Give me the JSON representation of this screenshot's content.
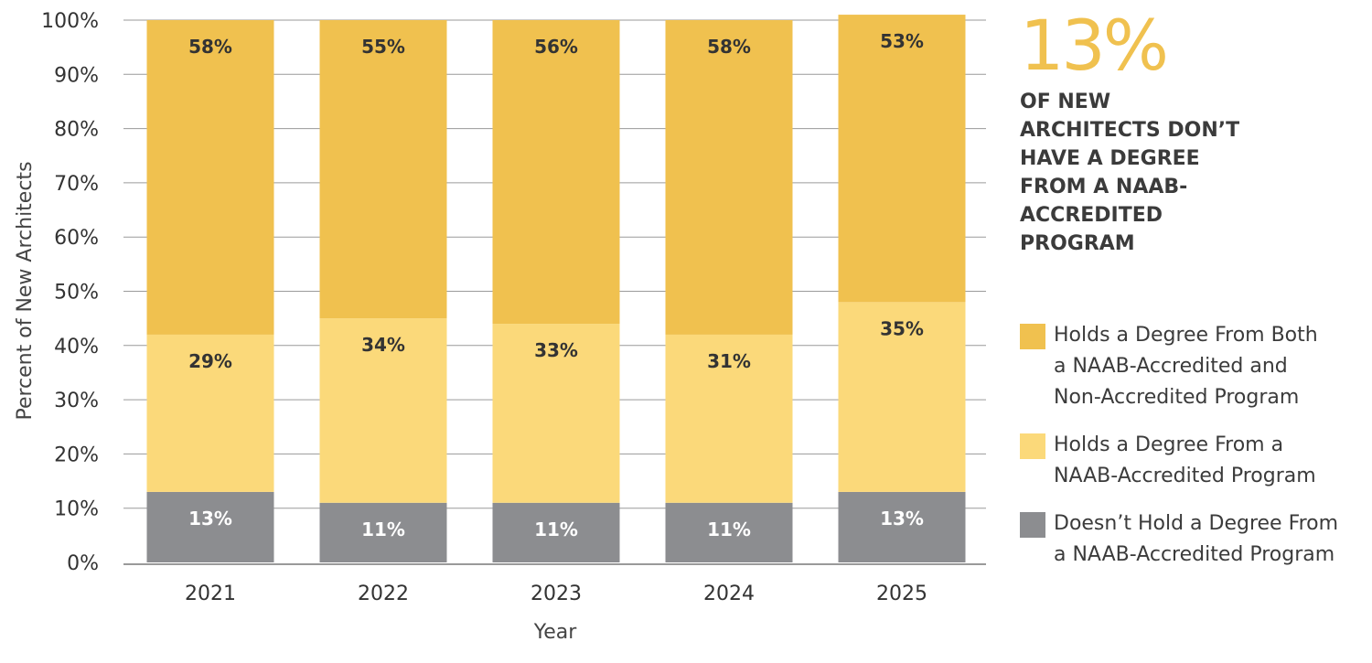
{
  "chart_data": {
    "type": "bar",
    "stacked": true,
    "categories": [
      "2021",
      "2022",
      "2023",
      "2024",
      "2025"
    ],
    "series": [
      {
        "name": "Doesn’t Hold a Degree From a NAAB-Accredited Program",
        "values": [
          13,
          11,
          11,
          11,
          13
        ],
        "labels": [
          "13%",
          "11%",
          "11%",
          "11%",
          "13%"
        ],
        "color": "#8c8d90",
        "label_color": "#ffffff"
      },
      {
        "name": "Holds a Degree From a NAAB-Accredited Program",
        "values": [
          29,
          34,
          33,
          31,
          35
        ],
        "labels": [
          "29%",
          "34%",
          "33%",
          "31%",
          "35%"
        ],
        "color": "#fbd97a",
        "label_color": "#333333"
      },
      {
        "name": "Holds a Degree From Both a NAAB-Accredited and Non-Accredited Program",
        "values": [
          58,
          55,
          56,
          58,
          53
        ],
        "labels": [
          "58%",
          "55%",
          "56%",
          "58%",
          "53%"
        ],
        "color": "#f0c14f",
        "label_color": "#333333"
      }
    ],
    "xlabel": "Year",
    "ylabel": "Percent of New Architects",
    "ylim": [
      0,
      100
    ],
    "yticks": [
      0,
      10,
      20,
      30,
      40,
      50,
      60,
      70,
      80,
      90,
      100
    ],
    "ytick_labels": [
      "0%",
      "10%",
      "20%",
      "30%",
      "40%",
      "50%",
      "60%",
      "70%",
      "80%",
      "90%",
      "100%"
    ],
    "grid": true,
    "legend_position": "right"
  },
  "callout": {
    "value": "13%",
    "text": "OF NEW ARCHITECTS DON’T HAVE A DEGREE FROM A NAAB-ACCREDITED PROGRAM"
  },
  "legend": [
    {
      "label": "Holds a Degree From Both\na NAAB-Accredited and\nNon-Accredited Program",
      "color": "#f0c14f"
    },
    {
      "label": "Holds a Degree From a\nNAAB-Accredited Program",
      "color": "#fbd97a"
    },
    {
      "label": "Doesn’t Hold a Degree From\na NAAB-Accredited Program",
      "color": "#8c8d90"
    }
  ]
}
